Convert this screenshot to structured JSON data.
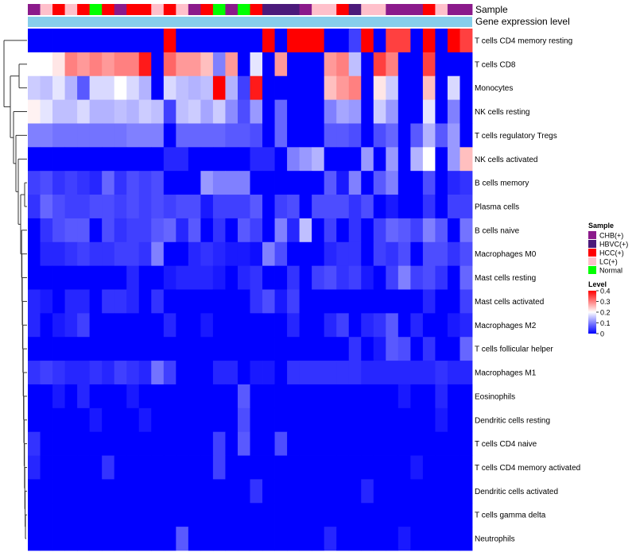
{
  "chart_data": {
    "type": "heatmap",
    "title": "",
    "annotation_tracks": [
      "Sample",
      "Gene expression level"
    ],
    "rows": [
      "T cells CD4 memory resting",
      "T cells CD8",
      "Monocytes",
      "NK cells resting",
      "T cells regulatory  Tregs",
      "NK cells activated",
      "B cells memory",
      "Plasma cells",
      "B cells naive",
      "Macrophages M0",
      "Mast cells resting",
      "Mast cells activated",
      "Macrophages M2",
      "T cells follicular helper",
      "Macrophages M1",
      "Eosinophils",
      "Dendritic cells resting",
      "T cells CD4 naive",
      "T cells CD4 memory activated",
      "Dendritic cells activated",
      "T cells gamma delta",
      "Neutrophils"
    ],
    "sample_groups": [
      "CHB(+)",
      "LC(+)",
      "HCC(+)",
      "LC(+)",
      "HCC(+)",
      "Normal",
      "HCC(+)",
      "CHB(+)",
      "HCC(+)",
      "HCC(+)",
      "LC(+)",
      "HCC(+)",
      "LC(+)",
      "CHB(+)",
      "HCC(+)",
      "Normal",
      "CHB(+)",
      "Normal",
      "HCC(+)",
      "HBVC(+)",
      "HBVC(+)",
      "HBVC(+)",
      "CHB(+)",
      "LC(+)",
      "LC(+)",
      "HCC(+)",
      "HBVC(+)",
      "LC(+)",
      "LC(+)",
      "CHB(+)",
      "CHB(+)",
      "CHB(+)",
      "HCC(+)",
      "LC(+)",
      "CHB(+)",
      "CHB(+)"
    ],
    "values": [
      [
        0,
        0,
        0,
        0,
        0,
        0,
        0,
        0,
        0,
        0,
        0,
        0.4,
        0,
        0,
        0,
        0,
        0,
        0,
        0,
        0.4,
        0,
        0.4,
        0.4,
        0.4,
        0,
        0,
        0.05,
        0.4,
        0,
        0.35,
        0.35,
        0,
        0.4,
        0,
        0.4,
        0.35
      ],
      [
        0.2,
        0.2,
        0.22,
        0.3,
        0.28,
        0.3,
        0.28,
        0.3,
        0.3,
        0.38,
        0,
        0.32,
        0.28,
        0.28,
        0.25,
        0.1,
        0.28,
        0,
        0.18,
        0,
        0.28,
        0,
        0,
        0,
        0.28,
        0.3,
        0.15,
        0,
        0.35,
        0.3,
        0,
        0,
        0.35,
        0,
        0,
        0
      ],
      [
        0.16,
        0.15,
        0.18,
        0.14,
        0.07,
        0.17,
        0.17,
        0.2,
        0.17,
        0.14,
        0,
        0.17,
        0.15,
        0.14,
        0.15,
        0.4,
        0.14,
        0.05,
        0.38,
        0,
        0,
        0,
        0,
        0,
        0.25,
        0.28,
        0.3,
        0,
        0.22,
        0.16,
        0,
        0,
        0.25,
        0,
        0.17,
        0
      ],
      [
        0.21,
        0.18,
        0.15,
        0.15,
        0.17,
        0.14,
        0.14,
        0.15,
        0.14,
        0.16,
        0.15,
        0.05,
        0.15,
        0.16,
        0.13,
        0.16,
        0.11,
        0.06,
        0.12,
        0,
        0.08,
        0,
        0,
        0,
        0.1,
        0.13,
        0.12,
        0,
        0.16,
        0.12,
        0,
        0,
        0.18,
        0,
        0.1,
        0
      ],
      [
        0.1,
        0.1,
        0.09,
        0.09,
        0.09,
        0.09,
        0.09,
        0.09,
        0.1,
        0.1,
        0.1,
        0,
        0.08,
        0.08,
        0.08,
        0.08,
        0.07,
        0.07,
        0.06,
        0,
        0.08,
        0,
        0,
        0,
        0.07,
        0.07,
        0.06,
        0,
        0.06,
        0.08,
        0,
        0.07,
        0.14,
        0.07,
        0.12,
        0
      ],
      [
        0,
        0,
        0,
        0,
        0,
        0,
        0,
        0,
        0,
        0,
        0,
        0.03,
        0.03,
        0,
        0,
        0,
        0,
        0,
        0.03,
        0.03,
        0,
        0.1,
        0.12,
        0.14,
        0,
        0,
        0,
        0.12,
        0,
        0.12,
        0,
        0.14,
        0.2,
        0,
        0.12,
        0.25
      ],
      [
        0.05,
        0.06,
        0.04,
        0.05,
        0.04,
        0.03,
        0.08,
        0.04,
        0.06,
        0.05,
        0.06,
        0,
        0,
        0,
        0.12,
        0.1,
        0.1,
        0.1,
        0,
        0,
        0,
        0,
        0,
        0,
        0.07,
        0.02,
        0.1,
        0,
        0.07,
        0.1,
        0,
        0,
        0.06,
        0,
        0.03,
        0.04
      ],
      [
        0.04,
        0.08,
        0.06,
        0.05,
        0.05,
        0.06,
        0.06,
        0.05,
        0.06,
        0.05,
        0.06,
        0.05,
        0.06,
        0.06,
        0.02,
        0.05,
        0.05,
        0.05,
        0.07,
        0,
        0.05,
        0.06,
        0,
        0.06,
        0.06,
        0.06,
        0.04,
        0.06,
        0,
        0.02,
        0,
        0,
        0.04,
        0,
        0.05,
        0.05
      ],
      [
        0,
        0.04,
        0.06,
        0.07,
        0.07,
        0,
        0.06,
        0.04,
        0.05,
        0.05,
        0.07,
        0.08,
        0.03,
        0.07,
        0,
        0.04,
        0,
        0.07,
        0.05,
        0,
        0.1,
        0.03,
        0.15,
        0,
        0.05,
        0,
        0.04,
        0,
        0.05,
        0.08,
        0.07,
        0.05,
        0.1,
        0.07,
        0,
        0.09
      ],
      [
        0,
        0.03,
        0.03,
        0.04,
        0.05,
        0.04,
        0.04,
        0.05,
        0.05,
        0.04,
        0.1,
        0,
        0,
        0.03,
        0.04,
        0.03,
        0.02,
        0.02,
        0.01,
        0.1,
        0.06,
        0,
        0,
        0,
        0.03,
        0.04,
        0.04,
        0,
        0.05,
        0.04,
        0.06,
        0,
        0.06,
        0.06,
        0.04,
        0.06
      ],
      [
        0,
        0,
        0,
        0,
        0,
        0,
        0,
        0,
        0.03,
        0,
        0,
        0.02,
        0.03,
        0.03,
        0.03,
        0.02,
        0,
        0.03,
        0.04,
        0,
        0,
        0.04,
        0,
        0.05,
        0.06,
        0.04,
        0.05,
        0.02,
        0,
        0.05,
        0.1,
        0.05,
        0.06,
        0.04,
        0,
        0.08
      ],
      [
        0.03,
        0.02,
        0,
        0.03,
        0.03,
        0,
        0.04,
        0.04,
        0.03,
        0,
        0.04,
        0,
        0,
        0,
        0,
        0,
        0,
        0,
        0.04,
        0.06,
        0.02,
        0.05,
        0,
        0,
        0,
        0,
        0,
        0,
        0,
        0,
        0,
        0,
        0.03,
        0,
        0,
        0.05
      ],
      [
        0.03,
        0,
        0.02,
        0.03,
        0.05,
        0,
        0,
        0,
        0,
        0,
        0,
        0.03,
        0,
        0,
        0.02,
        0,
        0,
        0,
        0,
        0,
        0,
        0.03,
        0,
        0,
        0.03,
        0.05,
        0,
        0.03,
        0.04,
        0.07,
        0,
        0.03,
        0,
        0,
        0.02,
        0.03
      ],
      [
        0,
        0,
        0,
        0,
        0,
        0,
        0,
        0,
        0,
        0,
        0,
        0,
        0,
        0,
        0,
        0,
        0,
        0,
        0,
        0,
        0,
        0,
        0,
        0,
        0,
        0,
        0.04,
        0,
        0.02,
        0.07,
        0.06,
        0,
        0.04,
        0,
        0,
        0.08
      ],
      [
        0.04,
        0.05,
        0.04,
        0.03,
        0.03,
        0.04,
        0.03,
        0.05,
        0.04,
        0.03,
        0.09,
        0.05,
        0,
        0,
        0,
        0.03,
        0.03,
        0,
        0.02,
        0.02,
        0,
        0.04,
        0.04,
        0.04,
        0.04,
        0.04,
        0.04,
        0.03,
        0.03,
        0.03,
        0.03,
        0.03,
        0.03,
        0.04,
        0.03,
        0.03
      ],
      [
        0,
        0,
        0.02,
        0,
        0.03,
        0,
        0,
        0,
        0.02,
        0,
        0,
        0,
        0,
        0,
        0,
        0,
        0,
        0.07,
        0,
        0,
        0,
        0,
        0,
        0,
        0,
        0,
        0,
        0,
        0,
        0,
        0.02,
        0,
        0,
        0.03,
        0,
        0
      ],
      [
        0,
        0,
        0,
        0,
        0,
        0.02,
        0,
        0,
        0,
        0.02,
        0,
        0,
        0,
        0,
        0,
        0,
        0,
        0.06,
        0,
        0,
        0,
        0,
        0,
        0,
        0,
        0,
        0,
        0,
        0,
        0,
        0,
        0,
        0,
        0.02,
        0,
        0
      ],
      [
        0.04,
        0,
        0,
        0,
        0,
        0,
        0,
        0,
        0,
        0,
        0,
        0,
        0,
        0,
        0,
        0.05,
        0,
        0.07,
        0,
        0,
        0.06,
        0,
        0,
        0,
        0,
        0,
        0,
        0,
        0,
        0,
        0,
        0,
        0,
        0,
        0,
        0
      ],
      [
        0.03,
        0,
        0,
        0,
        0,
        0,
        0.04,
        0,
        0,
        0,
        0,
        0,
        0,
        0,
        0,
        0.05,
        0,
        0,
        0,
        0,
        0,
        0,
        0,
        0,
        0,
        0,
        0,
        0,
        0,
        0,
        0,
        0.02,
        0,
        0,
        0,
        0
      ],
      [
        0,
        0,
        0,
        0,
        0,
        0,
        0,
        0,
        0,
        0,
        0,
        0,
        0,
        0,
        0,
        0,
        0,
        0,
        0.04,
        0,
        0,
        0,
        0,
        0,
        0,
        0,
        0,
        0.03,
        0,
        0,
        0,
        0,
        0,
        0,
        0,
        0
      ],
      [
        0,
        0,
        0,
        0,
        0,
        0,
        0,
        0,
        0,
        0,
        0,
        0,
        0,
        0,
        0,
        0,
        0,
        0,
        0,
        0,
        0,
        0,
        0,
        0,
        0,
        0,
        0,
        0,
        0,
        0,
        0,
        0,
        0,
        0,
        0,
        0
      ],
      [
        0,
        0,
        0,
        0,
        0,
        0,
        0,
        0,
        0,
        0,
        0,
        0,
        0.07,
        0,
        0,
        0,
        0,
        0,
        0,
        0,
        0,
        0,
        0,
        0,
        0.03,
        0,
        0,
        0,
        0,
        0,
        0.02,
        0,
        0,
        0,
        0,
        0
      ]
    ],
    "legend_sample": {
      "title": "Sample",
      "items": [
        {
          "label": "CHB(+)",
          "color": "#8b1a8b"
        },
        {
          "label": "HBVC(+)",
          "color": "#4b1a7a"
        },
        {
          "label": "HCC(+)",
          "color": "#ff0000"
        },
        {
          "label": "LC(+)",
          "color": "#ffc0cb"
        },
        {
          "label": "Normal",
          "color": "#00ff00"
        }
      ]
    },
    "legend_level": {
      "title": "Level",
      "range": [
        0,
        0.4
      ],
      "ticks": [
        "0.4",
        "0.3",
        "0.2",
        "0.1",
        "0"
      ],
      "tick_values": [
        0.4,
        0.3,
        0.2,
        0.1,
        0
      ]
    },
    "colors": {
      "low": "#0000ff",
      "mid": "#ffffff",
      "high": "#ff0000",
      "expression_bar": "#87ceeb"
    }
  }
}
